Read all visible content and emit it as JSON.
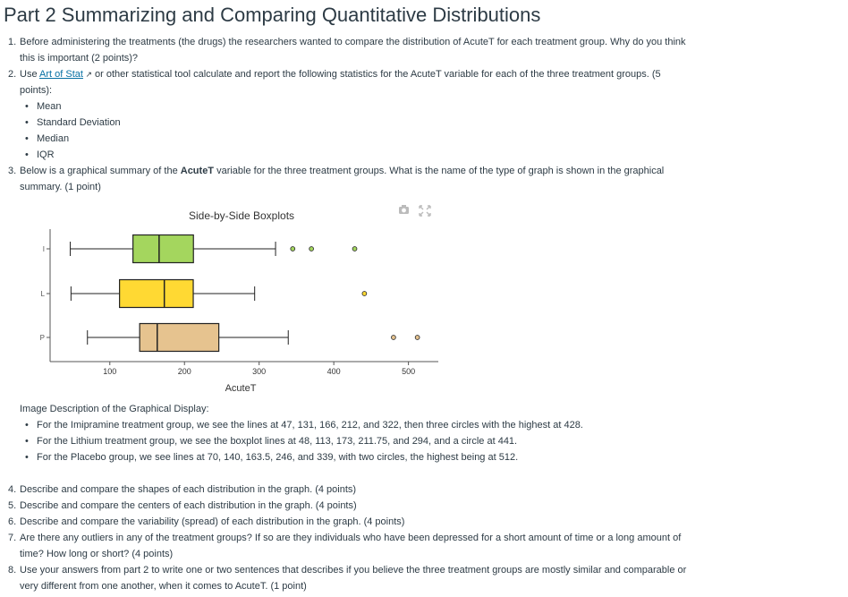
{
  "title": "Part 2 Summarizing and Comparing Quantitative Distributions",
  "list_a": [
    {
      "num": "1.",
      "lines": [
        "Before administering the treatments (the drugs) the researchers wanted to compare the distribution of AcuteT for each treatment group. Why do you think",
        "this is important (2 points)?"
      ]
    },
    {
      "num": "2.",
      "pre": "Use ",
      "link": "Art of Stat",
      "post": " or other statistical tool calculate and report the following statistics for the AcuteT variable for each of the three treatment groups. (5",
      "line2": "points):"
    },
    {
      "num": "3.",
      "pre": "Below is a graphical summary of the ",
      "bold": "AcuteT",
      "post": " variable for the three treatment groups. What is the name of the type of graph is shown in the graphical",
      "line2": "summary. (1 point)"
    }
  ],
  "stats_bullets": [
    "Mean",
    "Standard Deviation",
    "Median",
    "IQR"
  ],
  "chart_data": {
    "type": "boxplot",
    "title": "Side-by-Side Boxplots",
    "xlabel": "AcuteT",
    "ylabel": "",
    "xlim": [
      20,
      540
    ],
    "x_ticks": [
      100,
      200,
      300,
      400,
      500
    ],
    "x_tick_labels": [
      "100",
      "200",
      "300",
      "400",
      "500"
    ],
    "categories": [
      "I",
      "L",
      "P"
    ],
    "series": [
      {
        "category": "I",
        "min": 47,
        "q1": 131,
        "median": 166,
        "q3": 212,
        "max": 322,
        "outliers": [
          345,
          370,
          428
        ],
        "color": "#a4d65e"
      },
      {
        "category": "L",
        "min": 48,
        "q1": 113,
        "median": 173,
        "q3": 211.75,
        "max": 294,
        "outliers": [
          441
        ],
        "color": "#ffd933"
      },
      {
        "category": "P",
        "min": 70,
        "q1": 140,
        "median": 163.5,
        "q3": 246,
        "max": 339,
        "outliers": [
          480,
          512
        ],
        "color": "#e6c38f"
      }
    ],
    "grid": false,
    "legend": "none"
  },
  "image_description": {
    "heading": "Image Description of the Graphical Display:",
    "bullets": [
      "For the Imipramine treatment group, we see the lines at 47, 131, 166, 212, and 322, then three circles with the highest at 428.",
      "For the Lithium treatment group, we see the boxplot lines at 48, 113, 173, 211.75, and 294, and a circle at 441.",
      "For the Placebo group, we see lines at 70, 140, 163.5, 246, and 339, with two circles, the highest being at 512."
    ]
  },
  "list_b": [
    {
      "num": "4.",
      "lines": [
        "Describe and compare the shapes of each distribution in the graph. (4 points)"
      ]
    },
    {
      "num": "5.",
      "lines": [
        "Describe and compare the centers of each distribution in the graph. (4 points)"
      ]
    },
    {
      "num": "6.",
      "lines": [
        "Describe and compare the variability (spread) of each distribution in the graph. (4 points)"
      ]
    },
    {
      "num": "7.",
      "lines": [
        "Are there any outliers in any of the treatment groups? If so are they individuals who have been depressed for a short amount of time or a long amount of",
        "time? How long or short? (4 points)"
      ]
    },
    {
      "num": "8.",
      "lines": [
        "Use your answers from part 2 to write one or two sentences that describes if you believe the three treatment groups are mostly similar and comparable or",
        "very different from one another, when it comes to AcuteT. (1 point)"
      ]
    }
  ],
  "icons": {
    "camera": "camera-icon",
    "expand": "expand-icon",
    "external": "external-link-icon"
  },
  "colors": {
    "link": "#0770a3",
    "text": "#2d3b45"
  }
}
